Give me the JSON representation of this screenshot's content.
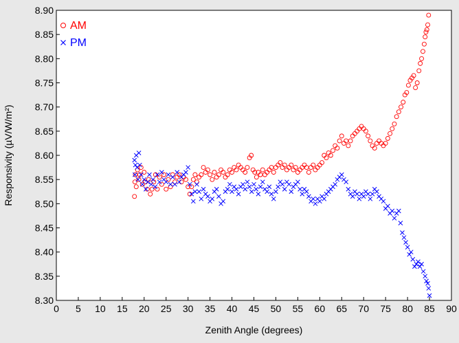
{
  "chart_data": {
    "type": "scatter",
    "xlabel": "Zenith Angle (degrees)",
    "ylabel": "Responsivity (µV/W/m²)",
    "xlim": [
      0,
      90
    ],
    "ylim": [
      8.3,
      8.9
    ],
    "x_ticks": [
      "0",
      "5",
      "10",
      "15",
      "20",
      "25",
      "30",
      "35",
      "40",
      "45",
      "50",
      "55",
      "60",
      "65",
      "70",
      "75",
      "80",
      "85",
      "90"
    ],
    "y_ticks": [
      "8.30",
      "8.35",
      "8.40",
      "8.45",
      "8.50",
      "8.55",
      "8.60",
      "8.65",
      "8.70",
      "8.75",
      "8.80",
      "8.85",
      "8.90"
    ],
    "grid": false,
    "legend": "top-left",
    "series": [
      {
        "name": "AM",
        "marker": "circle",
        "color": "#ff0000",
        "points": [
          [
            17.8,
            8.515
          ],
          [
            17.9,
            8.545
          ],
          [
            18.0,
            8.56
          ],
          [
            18.2,
            8.535
          ],
          [
            18.5,
            8.57
          ],
          [
            18.8,
            8.55
          ],
          [
            19.0,
            8.56
          ],
          [
            19.3,
            8.575
          ],
          [
            19.6,
            8.54
          ],
          [
            20.0,
            8.565
          ],
          [
            20.3,
            8.545
          ],
          [
            20.7,
            8.53
          ],
          [
            21.0,
            8.55
          ],
          [
            21.4,
            8.52
          ],
          [
            21.8,
            8.53
          ],
          [
            22.2,
            8.545
          ],
          [
            22.6,
            8.56
          ],
          [
            23.0,
            8.53
          ],
          [
            23.5,
            8.555
          ],
          [
            24.0,
            8.54
          ],
          [
            24.5,
            8.56
          ],
          [
            25.0,
            8.53
          ],
          [
            25.5,
            8.55
          ],
          [
            26.0,
            8.535
          ],
          [
            26.5,
            8.56
          ],
          [
            27.0,
            8.545
          ],
          [
            27.5,
            8.555
          ],
          [
            28.0,
            8.56
          ],
          [
            28.5,
            8.545
          ],
          [
            29.0,
            8.555
          ],
          [
            29.5,
            8.55
          ],
          [
            30.0,
            8.535
          ],
          [
            30.4,
            8.52
          ],
          [
            30.8,
            8.535
          ],
          [
            31.2,
            8.55
          ],
          [
            31.6,
            8.56
          ],
          [
            32.0,
            8.545
          ],
          [
            32.5,
            8.555
          ],
          [
            33.0,
            8.56
          ],
          [
            33.5,
            8.575
          ],
          [
            34.0,
            8.565
          ],
          [
            34.5,
            8.57
          ],
          [
            35.0,
            8.56
          ],
          [
            35.5,
            8.55
          ],
          [
            36.0,
            8.565
          ],
          [
            36.5,
            8.555
          ],
          [
            37.0,
            8.56
          ],
          [
            37.5,
            8.57
          ],
          [
            38.0,
            8.565
          ],
          [
            38.5,
            8.555
          ],
          [
            39.0,
            8.56
          ],
          [
            39.5,
            8.57
          ],
          [
            40.0,
            8.565
          ],
          [
            40.5,
            8.575
          ],
          [
            41.0,
            8.57
          ],
          [
            41.5,
            8.58
          ],
          [
            42.0,
            8.575
          ],
          [
            42.5,
            8.57
          ],
          [
            43.0,
            8.565
          ],
          [
            43.5,
            8.575
          ],
          [
            44.0,
            8.595
          ],
          [
            44.4,
            8.6
          ],
          [
            44.8,
            8.57
          ],
          [
            45.2,
            8.565
          ],
          [
            45.6,
            8.555
          ],
          [
            46.0,
            8.565
          ],
          [
            46.5,
            8.56
          ],
          [
            47.0,
            8.57
          ],
          [
            47.5,
            8.56
          ],
          [
            48.0,
            8.565
          ],
          [
            48.5,
            8.57
          ],
          [
            49.0,
            8.575
          ],
          [
            49.5,
            8.565
          ],
          [
            50.0,
            8.575
          ],
          [
            50.5,
            8.58
          ],
          [
            51.0,
            8.585
          ],
          [
            51.5,
            8.575
          ],
          [
            52.0,
            8.58
          ],
          [
            52.5,
            8.57
          ],
          [
            53.0,
            8.575
          ],
          [
            53.5,
            8.58
          ],
          [
            54.0,
            8.57
          ],
          [
            54.5,
            8.575
          ],
          [
            55.0,
            8.565
          ],
          [
            55.5,
            8.57
          ],
          [
            56.0,
            8.575
          ],
          [
            56.5,
            8.58
          ],
          [
            57.0,
            8.575
          ],
          [
            57.5,
            8.565
          ],
          [
            58.0,
            8.575
          ],
          [
            58.5,
            8.58
          ],
          [
            59.0,
            8.57
          ],
          [
            59.5,
            8.575
          ],
          [
            60.0,
            8.58
          ],
          [
            60.5,
            8.585
          ],
          [
            61.0,
            8.6
          ],
          [
            61.5,
            8.595
          ],
          [
            62.0,
            8.605
          ],
          [
            62.5,
            8.6
          ],
          [
            63.0,
            8.61
          ],
          [
            63.5,
            8.62
          ],
          [
            64.0,
            8.615
          ],
          [
            64.5,
            8.63
          ],
          [
            65.0,
            8.64
          ],
          [
            65.5,
            8.625
          ],
          [
            66.0,
            8.63
          ],
          [
            66.5,
            8.62
          ],
          [
            67.0,
            8.63
          ],
          [
            67.5,
            8.64
          ],
          [
            68.0,
            8.645
          ],
          [
            68.5,
            8.65
          ],
          [
            69.0,
            8.655
          ],
          [
            69.5,
            8.66
          ],
          [
            70.0,
            8.655
          ],
          [
            70.5,
            8.65
          ],
          [
            71.0,
            8.64
          ],
          [
            71.5,
            8.63
          ],
          [
            72.0,
            8.62
          ],
          [
            72.5,
            8.615
          ],
          [
            73.0,
            8.625
          ],
          [
            73.5,
            8.63
          ],
          [
            74.0,
            8.625
          ],
          [
            74.5,
            8.62
          ],
          [
            75.0,
            8.625
          ],
          [
            75.5,
            8.635
          ],
          [
            76.0,
            8.645
          ],
          [
            76.5,
            8.655
          ],
          [
            77.0,
            8.665
          ],
          [
            77.5,
            8.68
          ],
          [
            78.0,
            8.69
          ],
          [
            78.5,
            8.7
          ],
          [
            79.0,
            8.71
          ],
          [
            79.4,
            8.725
          ],
          [
            79.8,
            8.73
          ],
          [
            80.2,
            8.745
          ],
          [
            80.6,
            8.755
          ],
          [
            81.0,
            8.76
          ],
          [
            81.4,
            8.765
          ],
          [
            81.8,
            8.74
          ],
          [
            82.2,
            8.75
          ],
          [
            82.6,
            8.775
          ],
          [
            82.9,
            8.79
          ],
          [
            83.2,
            8.8
          ],
          [
            83.5,
            8.815
          ],
          [
            83.8,
            8.83
          ],
          [
            84.0,
            8.845
          ],
          [
            84.2,
            8.855
          ],
          [
            84.4,
            8.86
          ],
          [
            84.6,
            8.87
          ],
          [
            84.8,
            8.89
          ]
        ]
      },
      {
        "name": "PM",
        "marker": "x",
        "color": "#0000ff",
        "points": [
          [
            17.8,
            8.59
          ],
          [
            17.9,
            8.56
          ],
          [
            18.0,
            8.58
          ],
          [
            18.2,
            8.6
          ],
          [
            18.4,
            8.575
          ],
          [
            18.6,
            8.55
          ],
          [
            18.8,
            8.605
          ],
          [
            19.0,
            8.58
          ],
          [
            19.3,
            8.56
          ],
          [
            19.6,
            8.54
          ],
          [
            20.0,
            8.55
          ],
          [
            20.4,
            8.53
          ],
          [
            20.8,
            8.545
          ],
          [
            21.2,
            8.56
          ],
          [
            21.6,
            8.54
          ],
          [
            22.0,
            8.55
          ],
          [
            22.5,
            8.535
          ],
          [
            23.0,
            8.56
          ],
          [
            23.5,
            8.545
          ],
          [
            24.0,
            8.565
          ],
          [
            24.5,
            8.55
          ],
          [
            25.0,
            8.545
          ],
          [
            25.5,
            8.56
          ],
          [
            26.0,
            8.54
          ],
          [
            26.5,
            8.555
          ],
          [
            27.0,
            8.54
          ],
          [
            27.5,
            8.565
          ],
          [
            28.0,
            8.545
          ],
          [
            28.5,
            8.555
          ],
          [
            29.0,
            8.56
          ],
          [
            29.5,
            8.565
          ],
          [
            30.0,
            8.575
          ],
          [
            30.4,
            8.54
          ],
          [
            30.8,
            8.52
          ],
          [
            31.2,
            8.505
          ],
          [
            31.6,
            8.525
          ],
          [
            32.0,
            8.54
          ],
          [
            32.5,
            8.525
          ],
          [
            33.0,
            8.51
          ],
          [
            33.5,
            8.53
          ],
          [
            34.0,
            8.52
          ],
          [
            34.5,
            8.515
          ],
          [
            35.0,
            8.505
          ],
          [
            35.5,
            8.51
          ],
          [
            36.0,
            8.525
          ],
          [
            36.5,
            8.53
          ],
          [
            37.0,
            8.515
          ],
          [
            37.5,
            8.5
          ],
          [
            38.0,
            8.505
          ],
          [
            38.5,
            8.525
          ],
          [
            39.0,
            8.53
          ],
          [
            39.5,
            8.54
          ],
          [
            40.0,
            8.525
          ],
          [
            40.5,
            8.535
          ],
          [
            41.0,
            8.53
          ],
          [
            41.5,
            8.52
          ],
          [
            42.0,
            8.535
          ],
          [
            42.5,
            8.54
          ],
          [
            43.0,
            8.53
          ],
          [
            43.5,
            8.545
          ],
          [
            44.0,
            8.535
          ],
          [
            44.5,
            8.525
          ],
          [
            45.0,
            8.54
          ],
          [
            45.5,
            8.53
          ],
          [
            46.0,
            8.52
          ],
          [
            46.5,
            8.535
          ],
          [
            47.0,
            8.545
          ],
          [
            47.5,
            8.53
          ],
          [
            48.0,
            8.525
          ],
          [
            48.5,
            8.535
          ],
          [
            49.0,
            8.52
          ],
          [
            49.5,
            8.51
          ],
          [
            50.0,
            8.525
          ],
          [
            50.5,
            8.535
          ],
          [
            51.0,
            8.545
          ],
          [
            51.5,
            8.54
          ],
          [
            52.0,
            8.53
          ],
          [
            52.5,
            8.545
          ],
          [
            53.0,
            8.54
          ],
          [
            53.5,
            8.525
          ],
          [
            54.0,
            8.535
          ],
          [
            54.5,
            8.54
          ],
          [
            55.0,
            8.545
          ],
          [
            55.5,
            8.53
          ],
          [
            56.0,
            8.52
          ],
          [
            56.5,
            8.53
          ],
          [
            57.0,
            8.525
          ],
          [
            57.5,
            8.515
          ],
          [
            58.0,
            8.505
          ],
          [
            58.5,
            8.51
          ],
          [
            59.0,
            8.5
          ],
          [
            59.5,
            8.51
          ],
          [
            60.0,
            8.505
          ],
          [
            60.5,
            8.515
          ],
          [
            61.0,
            8.51
          ],
          [
            61.5,
            8.52
          ],
          [
            62.0,
            8.525
          ],
          [
            62.5,
            8.53
          ],
          [
            63.0,
            8.535
          ],
          [
            63.5,
            8.54
          ],
          [
            64.0,
            8.55
          ],
          [
            64.5,
            8.555
          ],
          [
            65.0,
            8.56
          ],
          [
            65.5,
            8.55
          ],
          [
            66.0,
            8.545
          ],
          [
            66.5,
            8.53
          ],
          [
            67.0,
            8.52
          ],
          [
            67.5,
            8.515
          ],
          [
            68.0,
            8.525
          ],
          [
            68.5,
            8.52
          ],
          [
            69.0,
            8.51
          ],
          [
            69.5,
            8.52
          ],
          [
            70.0,
            8.515
          ],
          [
            70.5,
            8.525
          ],
          [
            71.0,
            8.52
          ],
          [
            71.5,
            8.51
          ],
          [
            72.0,
            8.52
          ],
          [
            72.5,
            8.53
          ],
          [
            73.0,
            8.525
          ],
          [
            73.5,
            8.515
          ],
          [
            74.0,
            8.51
          ],
          [
            74.5,
            8.505
          ],
          [
            75.0,
            8.49
          ],
          [
            75.5,
            8.495
          ],
          [
            76.0,
            8.48
          ],
          [
            76.5,
            8.485
          ],
          [
            77.0,
            8.47
          ],
          [
            77.5,
            8.48
          ],
          [
            78.0,
            8.485
          ],
          [
            78.4,
            8.46
          ],
          [
            78.8,
            8.44
          ],
          [
            79.2,
            8.43
          ],
          [
            79.6,
            8.42
          ],
          [
            80.0,
            8.41
          ],
          [
            80.4,
            8.395
          ],
          [
            80.8,
            8.4
          ],
          [
            81.2,
            8.385
          ],
          [
            81.6,
            8.37
          ],
          [
            82.0,
            8.375
          ],
          [
            82.4,
            8.38
          ],
          [
            82.8,
            8.37
          ],
          [
            83.2,
            8.375
          ],
          [
            83.6,
            8.36
          ],
          [
            84.0,
            8.35
          ],
          [
            84.3,
            8.34
          ],
          [
            84.6,
            8.335
          ],
          [
            84.8,
            8.325
          ],
          [
            85.0,
            8.31
          ]
        ]
      }
    ]
  }
}
